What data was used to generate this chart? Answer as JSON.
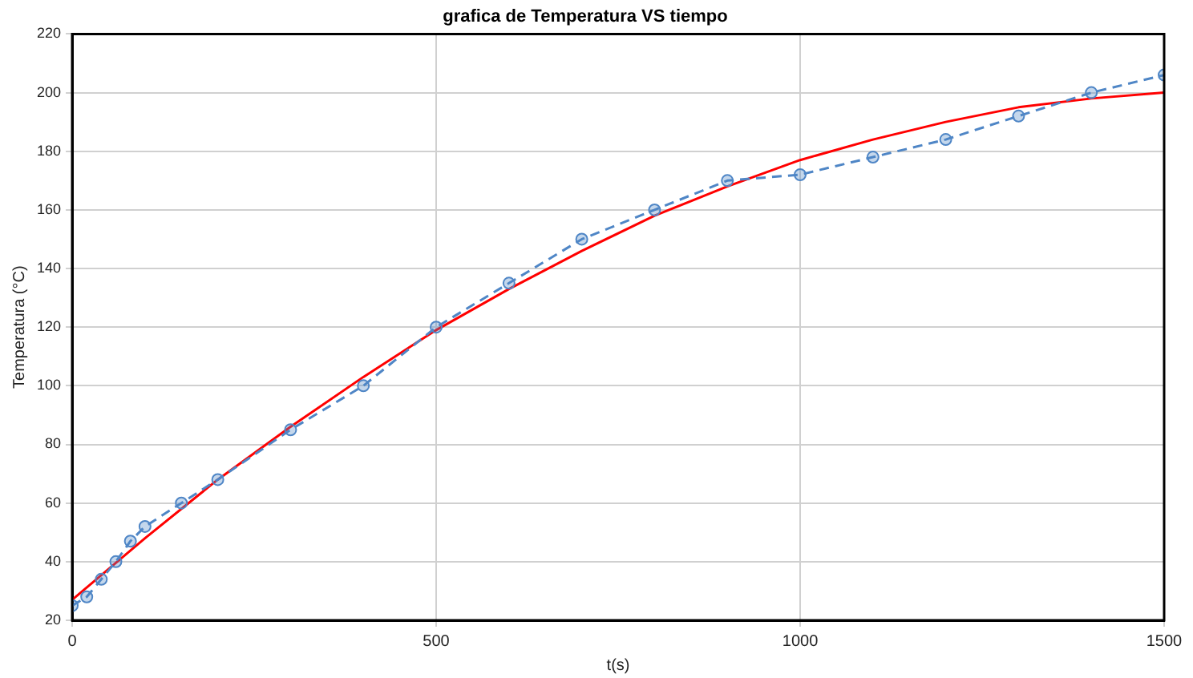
{
  "chart_data": {
    "type": "line",
    "title": "grafica de Temperatura VS tiempo",
    "xlabel": "t(s)",
    "ylabel": "Temperatura (°C)",
    "xlim": [
      0,
      1500
    ],
    "xticks": [
      0,
      500,
      1000,
      1500
    ],
    "ylim": [
      20,
      220
    ],
    "yticks": [
      20,
      40,
      60,
      80,
      100,
      120,
      140,
      160,
      180,
      200,
      220
    ],
    "grid": true,
    "legend": false,
    "series": [
      {
        "color": "#4f86c6",
        "marker": "circle",
        "line_style": "dashed",
        "x": [
          0,
          20,
          40,
          60,
          80,
          100,
          150,
          200,
          300,
          400,
          500,
          600,
          700,
          800,
          900,
          1000,
          1100,
          1200,
          1300,
          1400,
          1500
        ],
        "values": [
          25,
          28,
          34,
          40,
          47,
          52,
          60,
          68,
          85,
          100,
          120,
          135,
          150,
          160,
          170,
          172,
          178,
          184,
          192,
          200,
          206
        ]
      },
      {
        "color": "#ff0000",
        "marker": "none",
        "line_style": "solid",
        "x": [
          0,
          100,
          200,
          300,
          400,
          500,
          600,
          700,
          800,
          900,
          1000,
          1100,
          1200,
          1300,
          1400,
          1500
        ],
        "values": [
          27,
          48,
          68,
          86,
          103,
          119,
          133,
          146,
          158,
          168,
          177,
          184,
          190,
          195,
          198,
          200
        ]
      }
    ]
  }
}
